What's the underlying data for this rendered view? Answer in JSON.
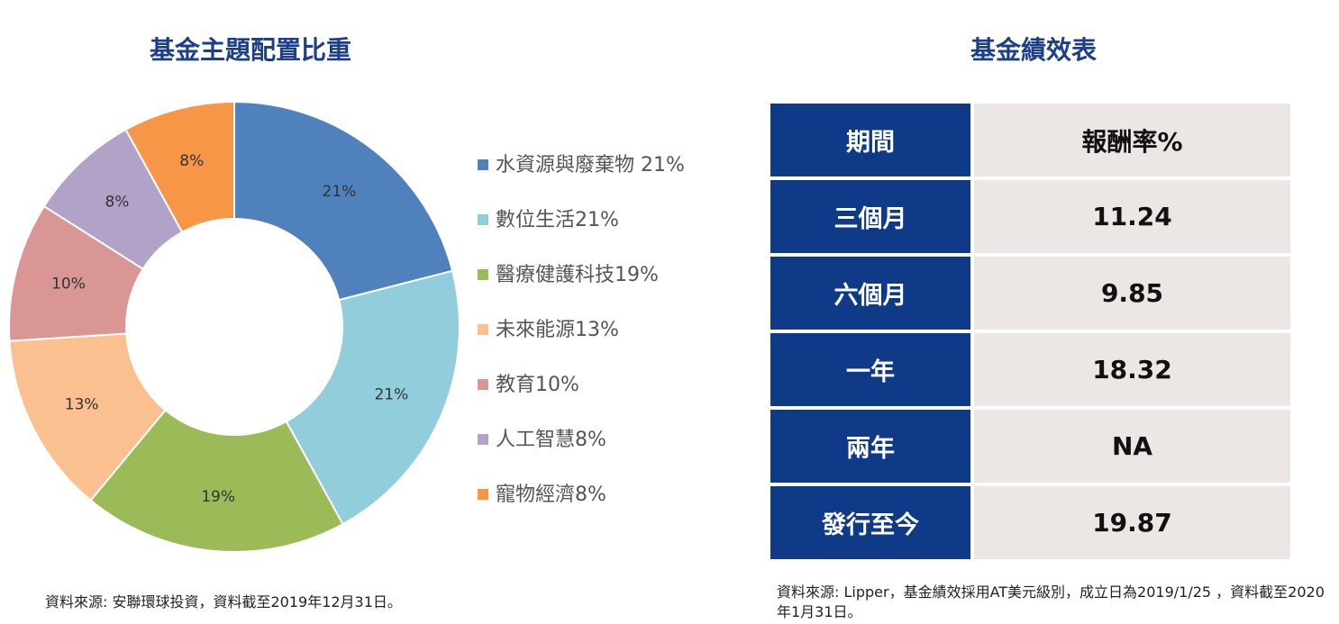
{
  "chart_data": {
    "type": "donut",
    "title": "基金主題配置比重",
    "categories": [
      "水資源與廢棄物 21%",
      "數位生活21%",
      "醫療健護科技19%",
      "未來能源13%",
      "教育10%",
      "人工智慧8%",
      "寵物經濟8%"
    ],
    "values": [
      21,
      21,
      19,
      13,
      10,
      8,
      8
    ],
    "value_labels": [
      "21%",
      "21%",
      "19%",
      "13%",
      "10%",
      "8%",
      "8%"
    ],
    "colors": [
      "#4f81bd",
      "#92cddc",
      "#9bbb59",
      "#fac090",
      "#d99694",
      "#b3a2c7",
      "#f79646"
    ],
    "legend": "right",
    "note": "資料來源: 安聯環球投資，資料截至2019年12月31日。"
  },
  "table": {
    "title": "基金績效表",
    "header": [
      "期間",
      "報酬率%"
    ],
    "rows": [
      [
        "三個月",
        "11.24"
      ],
      [
        "六個月",
        "9.85"
      ],
      [
        "一年",
        "18.32"
      ],
      [
        "兩年",
        "NA"
      ],
      [
        "發行至今",
        "19.87"
      ]
    ],
    "note": "資料來源: Lipper，基金績效採用AT美元級別，成立日為2019/1/25 ，資料截至2020年1月31日。"
  }
}
